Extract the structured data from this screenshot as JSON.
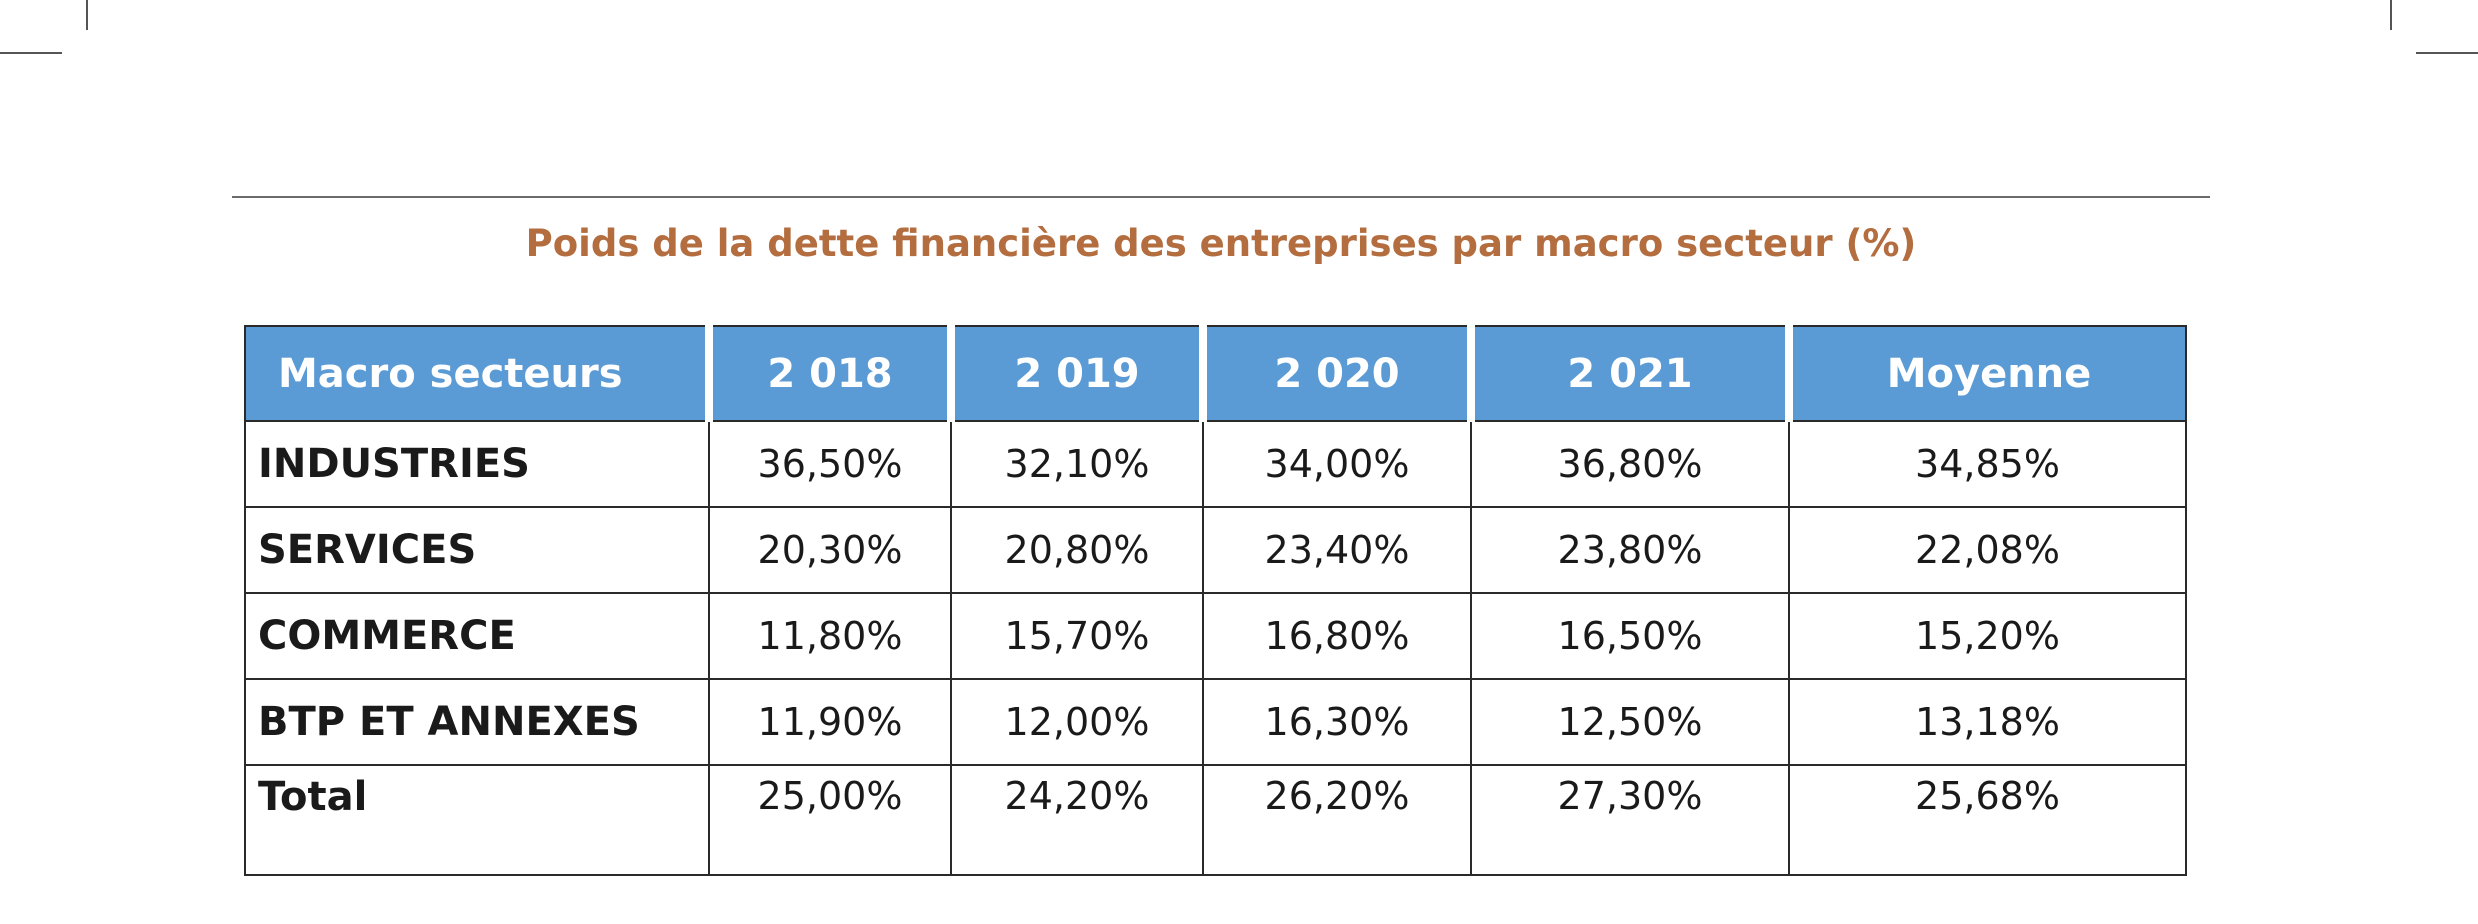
{
  "title": "Poids de la dette financière des entreprises par macro secteur (%)",
  "table": {
    "headers": [
      "Macro secteurs",
      "2 018",
      "2 019",
      "2 020",
      "2 021",
      "Moyenne"
    ],
    "rows": [
      {
        "label": "INDUSTRIES",
        "values": [
          "36,50%",
          "32,10%",
          "34,00%",
          "36,80%",
          "34,85%"
        ]
      },
      {
        "label": "SERVICES",
        "values": [
          "20,30%",
          "20,80%",
          "23,40%",
          "23,80%",
          "22,08%"
        ]
      },
      {
        "label": "COMMERCE",
        "values": [
          "11,80%",
          "15,70%",
          "16,80%",
          "16,50%",
          "15,20%"
        ]
      },
      {
        "label": "BTP ET ANNEXES",
        "values": [
          "11,90%",
          "12,00%",
          "16,30%",
          "12,50%",
          "13,18%"
        ]
      },
      {
        "label": "Total",
        "values": [
          "25,00%",
          "24,20%",
          "26,20%",
          "27,30%",
          "25,68%"
        ]
      }
    ]
  },
  "colors": {
    "header_bg": "#5b9bd5",
    "title": "#b36d3f"
  }
}
